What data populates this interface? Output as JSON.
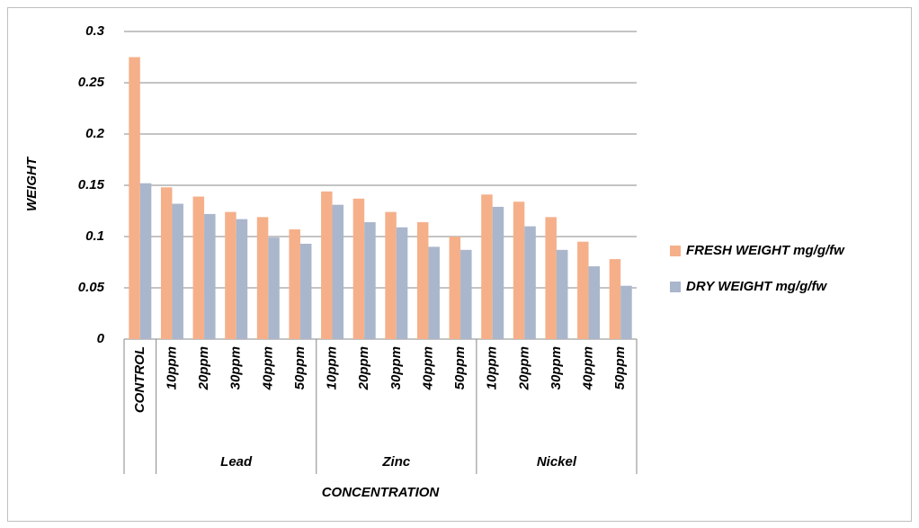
{
  "chart_data": {
    "type": "bar",
    "xlabel": "CONCENTRATION",
    "ylabel": "WEIGHT",
    "categories": [
      "CONTROL",
      "10ppm",
      "20ppm",
      "30ppm",
      "40ppm",
      "50ppm",
      "10ppm",
      "20ppm",
      "30ppm",
      "40ppm",
      "50ppm",
      "10ppm",
      "20ppm",
      "30ppm",
      "40ppm",
      "50ppm"
    ],
    "category_groups": [
      null,
      "Lead",
      "Lead",
      "Lead",
      "Lead",
      "Lead",
      "Zinc",
      "Zinc",
      "Zinc",
      "Zinc",
      "Zinc",
      "Nickel",
      "Nickel",
      "Nickel",
      "Nickel",
      "Nickel"
    ],
    "series": [
      {
        "name": "FRESH WEIGHT mg/g/fw",
        "color": "#f5b08a",
        "values": [
          0.275,
          0.148,
          0.139,
          0.124,
          0.119,
          0.107,
          0.144,
          0.137,
          0.124,
          0.114,
          0.1,
          0.141,
          0.134,
          0.119,
          0.095,
          0.078
        ]
      },
      {
        "name": "DRY WEIGHT mg/g/fw",
        "color": "#aab6cc",
        "values": [
          0.152,
          0.132,
          0.122,
          0.117,
          0.099,
          0.093,
          0.131,
          0.114,
          0.109,
          0.09,
          0.087,
          0.129,
          0.11,
          0.087,
          0.071,
          0.052
        ]
      }
    ],
    "ylim": [
      0,
      0.3
    ],
    "yticks": [
      0,
      0.05,
      0.1,
      0.15,
      0.2,
      0.25,
      0.3
    ],
    "grid": true,
    "legend": "right"
  }
}
